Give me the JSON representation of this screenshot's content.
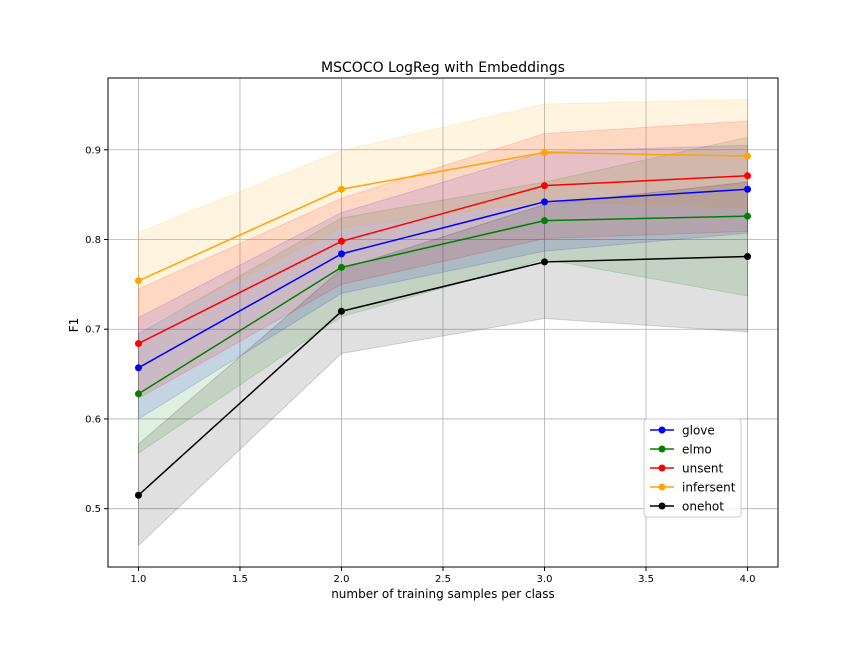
{
  "chart_data": {
    "type": "line",
    "title": "MSCOCO LogReg with Embeddings",
    "xlabel": "number of training samples per class",
    "ylabel": "F1",
    "xlim": [
      0.85,
      4.15
    ],
    "ylim": [
      0.435,
      0.98
    ],
    "xticks": [
      1.0,
      1.5,
      2.0,
      2.5,
      3.0,
      3.5,
      4.0
    ],
    "xtick_labels": [
      "1.0",
      "1.5",
      "2.0",
      "2.5",
      "3.0",
      "3.5",
      "4.0"
    ],
    "yticks": [
      0.5,
      0.6,
      0.7,
      0.8,
      0.9
    ],
    "ytick_labels": [
      "0.5",
      "0.6",
      "0.7",
      "0.8",
      "0.9"
    ],
    "grid": true,
    "legend_position": "lower-right",
    "x": [
      1.0,
      2.0,
      3.0,
      4.0
    ],
    "series": [
      {
        "name": "glove",
        "color": "#0000ff",
        "values": [
          0.657,
          0.784,
          0.842,
          0.856
        ],
        "lower": [
          0.6,
          0.74,
          0.787,
          0.807
        ],
        "upper": [
          0.713,
          0.83,
          0.898,
          0.905
        ]
      },
      {
        "name": "elmo",
        "color": "#008000",
        "values": [
          0.628,
          0.769,
          0.821,
          0.826
        ],
        "lower": [
          0.562,
          0.714,
          0.778,
          0.737
        ],
        "upper": [
          0.695,
          0.824,
          0.864,
          0.914
        ]
      },
      {
        "name": "unsent",
        "color": "#ff0000",
        "values": [
          0.684,
          0.798,
          0.86,
          0.871
        ],
        "lower": [
          0.623,
          0.75,
          0.801,
          0.809
        ],
        "upper": [
          0.745,
          0.846,
          0.918,
          0.932
        ]
      },
      {
        "name": "infersent",
        "color": "#ffa500",
        "values": [
          0.754,
          0.856,
          0.897,
          0.893
        ],
        "lower": [
          0.7,
          0.813,
          0.843,
          0.835
        ],
        "upper": [
          0.808,
          0.899,
          0.951,
          0.956
        ]
      },
      {
        "name": "onehot",
        "color": "#000000",
        "values": [
          0.515,
          0.72,
          0.775,
          0.781
        ],
        "lower": [
          0.459,
          0.673,
          0.712,
          0.697
        ],
        "upper": [
          0.572,
          0.767,
          0.839,
          0.864
        ]
      }
    ]
  }
}
